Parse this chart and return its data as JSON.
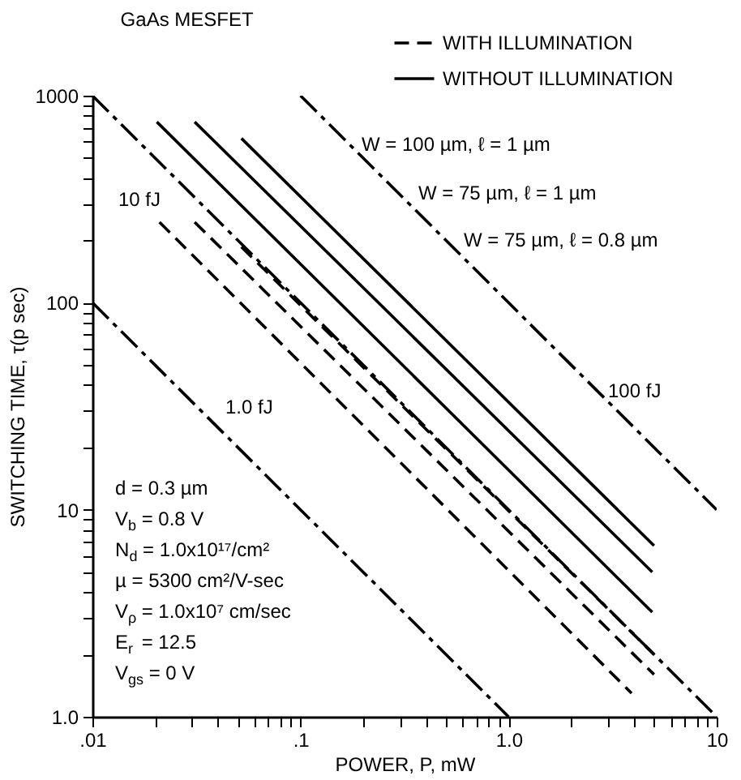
{
  "chart_data": {
    "type": "line",
    "title": "GaAs MESFET",
    "xlabel": "POWER, P, mW",
    "ylabel": "SWITCHING TIME, τ(p sec)",
    "log": "xy",
    "grid": false,
    "legend": "top right",
    "marker": "none",
    "xlim": [
      0.01,
      10
    ],
    "ylim": [
      1,
      1000
    ],
    "xticks": [
      {
        "value": 0.01,
        "label": ".01"
      },
      {
        "value": 0.02,
        "label": null
      },
      {
        "value": 0.03,
        "label": null
      },
      {
        "value": 0.04,
        "label": null
      },
      {
        "value": 0.05,
        "label": null
      },
      {
        "value": 0.06,
        "label": null
      },
      {
        "value": 0.07,
        "label": null
      },
      {
        "value": 0.08,
        "label": null
      },
      {
        "value": 0.09,
        "label": null
      },
      {
        "value": 0.1,
        "label": ".1"
      },
      {
        "value": 0.2,
        "label": null
      },
      {
        "value": 0.3,
        "label": null
      },
      {
        "value": 0.4,
        "label": null
      },
      {
        "value": 0.5,
        "label": null
      },
      {
        "value": 0.6,
        "label": null
      },
      {
        "value": 0.7,
        "label": null
      },
      {
        "value": 0.8,
        "label": null
      },
      {
        "value": 0.9,
        "label": null
      },
      {
        "value": 1,
        "label": "1.0"
      },
      {
        "value": 2,
        "label": null
      },
      {
        "value": 3,
        "label": null
      },
      {
        "value": 4,
        "label": null
      },
      {
        "value": 5,
        "label": null
      },
      {
        "value": 6,
        "label": null
      },
      {
        "value": 7,
        "label": null
      },
      {
        "value": 8,
        "label": null
      },
      {
        "value": 9,
        "label": null
      },
      10
    ],
    "yticks": [
      {
        "value": 1,
        "label": "1.0"
      },
      {
        "value": 2,
        "label": null
      },
      {
        "value": 3,
        "label": null
      },
      {
        "value": 4,
        "label": null
      },
      {
        "value": 5,
        "label": null
      },
      {
        "value": 6,
        "label": null
      },
      {
        "value": 7,
        "label": null
      },
      {
        "value": 8,
        "label": null
      },
      {
        "value": 9,
        "label": null
      },
      10,
      {
        "value": 20,
        "label": null
      },
      {
        "value": 30,
        "label": null
      },
      {
        "value": 40,
        "label": null
      },
      {
        "value": 50,
        "label": null
      },
      {
        "value": 60,
        "label": null
      },
      {
        "value": 70,
        "label": null
      },
      {
        "value": 80,
        "label": null
      },
      {
        "value": 90,
        "label": null
      },
      100,
      {
        "value": 200,
        "label": null
      },
      {
        "value": 300,
        "label": null
      },
      {
        "value": 400,
        "label": null
      },
      {
        "value": 500,
        "label": null
      },
      {
        "value": 600,
        "label": null
      },
      {
        "value": 700,
        "label": null
      },
      {
        "value": 800,
        "label": null
      },
      {
        "value": 900,
        "label": null
      },
      1000
    ],
    "series": [
      {
        "name": "WITH ILLUMINATION",
        "color": "#000000",
        "line_style": "dashed",
        "x": [
          0.021,
          3.9
        ],
        "values": [
          245,
          1.3
        ]
      },
      {
        "color": "#000000",
        "line_style": "dashed",
        "x": [
          0.031,
          5
        ],
        "values": [
          245,
          1.6
        ]
      },
      {
        "color": "#000000",
        "line_style": "dashed",
        "x": [
          0.052,
          5
        ],
        "values": [
          186,
          2.0
        ]
      },
      {
        "name": "WITHOUT ILLUMINATION",
        "color": "#000000",
        "line_style": "solid",
        "x": [
          0.0204,
          4.9
        ],
        "values": [
          747,
          3.2
        ]
      },
      {
        "color": "#000000",
        "line_style": "solid",
        "x": [
          0.031,
          4.9
        ],
        "values": [
          747,
          5.0
        ]
      },
      {
        "color": "#000000",
        "line_style": "solid",
        "x": [
          0.052,
          5
        ],
        "values": [
          622,
          6.7
        ]
      },
      {
        "color": "#000000",
        "line_style": "dashdot",
        "x": [
          0.01,
          1
        ],
        "values": [
          100,
          1
        ]
      },
      {
        "color": "#000000",
        "line_style": "dashdot",
        "x": [
          0.01,
          10
        ],
        "values": [
          1000,
          1
        ]
      },
      {
        "color": "#000000",
        "line_style": "dashdot",
        "x": [
          0.1,
          10
        ],
        "values": [
          1000,
          10
        ]
      }
    ],
    "annotations": [
      "W = 100 µm, ℓ = 1 µm",
      "W = 75 µm, ℓ = 1 µm",
      "W = 75 µm, ℓ = 0.8 µm",
      "10 fJ",
      "1.0 fJ",
      "100 fJ",
      "d = 0.3 µm",
      "V$_{b}$ = 0.8 V",
      "N$_{d}$ = 1.0x10¹⁷/cm²",
      "µ = 5300 cm²/V-sec",
      "V$_{ρ}$ = 1.0x10⁷ cm/sec",
      "E$_{r}$ = 12.5",
      "V$_{gs}$ = 0 V"
    ]
  }
}
